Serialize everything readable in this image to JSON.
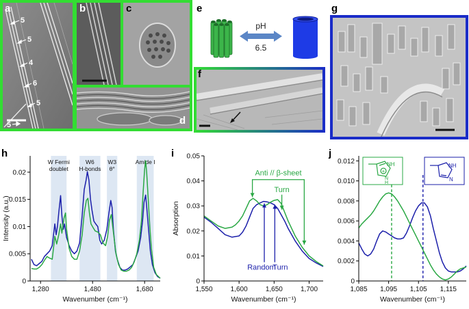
{
  "panel_labels": {
    "a": "a",
    "b": "b",
    "c": "c",
    "d": "d",
    "e": "e",
    "f": "f",
    "g": "g",
    "h": "h",
    "i": "i",
    "j": "j"
  },
  "panel_a": {
    "annotations": [
      "5",
      "5",
      "4",
      "6",
      "5",
      "5"
    ]
  },
  "panel_e": {
    "ph_label": "pH",
    "ph_value": "6.5"
  },
  "colors": {
    "green_frame": "#33dd33",
    "blue_frame": "#1a2cc8",
    "series_blue": "#1b1faa",
    "series_green": "#2aa844",
    "band_shade": "#dde7f3",
    "rod_green": "#3cb54a",
    "tube_blue": "#1e3be6"
  },
  "chart_data": [
    {
      "id": "h",
      "type": "line",
      "xlabel": "Wavenumber (cm⁻¹)",
      "ylabel": "Intensity (a.u.)",
      "xlim": [
        1240,
        1740
      ],
      "ylim": [
        0,
        0.023
      ],
      "xticks": [
        1280,
        1480,
        1680
      ],
      "xtick_labels": [
        "1,280",
        "1,480",
        "1,680"
      ],
      "yticks": [
        0,
        0.005,
        0.01,
        0.015,
        0.02
      ],
      "ytick_labels": [
        "0",
        "0.005",
        "0.01",
        "0.015",
        "0.02"
      ],
      "bands": [
        {
          "x": [
            1320,
            1380
          ],
          "label_lines": [
            "W Fermi",
            "doublet"
          ]
        },
        {
          "x": [
            1430,
            1510
          ],
          "label_lines": [
            "W6",
            "H-bonds"
          ]
        },
        {
          "x": [
            1535,
            1575
          ],
          "label_lines": [
            "W3",
            "θ°"
          ]
        },
        {
          "x": [
            1650,
            1715
          ],
          "label_lines": [
            "Amide I"
          ]
        }
      ],
      "series": [
        {
          "color": "#1b1faa",
          "x": [
            1245,
            1255,
            1265,
            1275,
            1285,
            1295,
            1305,
            1315,
            1325,
            1335,
            1340,
            1345,
            1350,
            1357,
            1362,
            1367,
            1372,
            1380,
            1390,
            1400,
            1410,
            1420,
            1430,
            1440,
            1448,
            1455,
            1460,
            1466,
            1472,
            1478,
            1485,
            1492,
            1500,
            1508,
            1515,
            1525,
            1535,
            1543,
            1550,
            1555,
            1560,
            1568,
            1575,
            1585,
            1595,
            1605,
            1615,
            1625,
            1635,
            1645,
            1655,
            1665,
            1672,
            1678,
            1684,
            1690,
            1696,
            1702,
            1710,
            1720,
            1730,
            1740
          ],
          "y": [
            0.004,
            0.003,
            0.0028,
            0.0032,
            0.0036,
            0.0045,
            0.005,
            0.0055,
            0.0065,
            0.0105,
            0.0085,
            0.01,
            0.0125,
            0.0157,
            0.012,
            0.0095,
            0.0105,
            0.008,
            0.0065,
            0.0055,
            0.005,
            0.0055,
            0.007,
            0.012,
            0.0168,
            0.0185,
            0.0201,
            0.0185,
            0.015,
            0.013,
            0.011,
            0.0105,
            0.01,
            0.0075,
            0.0068,
            0.0075,
            0.0095,
            0.0125,
            0.0148,
            0.0135,
            0.0095,
            0.0055,
            0.004,
            0.0025,
            0.002,
            0.002,
            0.0022,
            0.0026,
            0.003,
            0.0042,
            0.0055,
            0.008,
            0.011,
            0.0145,
            0.0158,
            0.0125,
            0.009,
            0.0055,
            0.003,
            0.0015,
            0.0008,
            0.0005
          ]
        },
        {
          "color": "#2aa844",
          "x": [
            1245,
            1255,
            1265,
            1275,
            1285,
            1295,
            1305,
            1315,
            1325,
            1335,
            1342,
            1350,
            1357,
            1362,
            1370,
            1376,
            1380,
            1390,
            1400,
            1410,
            1420,
            1430,
            1440,
            1448,
            1456,
            1462,
            1468,
            1474,
            1482,
            1490,
            1500,
            1510,
            1520,
            1530,
            1538,
            1545,
            1552,
            1560,
            1570,
            1580,
            1590,
            1600,
            1610,
            1620,
            1630,
            1640,
            1650,
            1660,
            1668,
            1674,
            1680,
            1684,
            1688,
            1694,
            1700,
            1706,
            1715,
            1725,
            1740
          ],
          "y": [
            0.0023,
            0.0022,
            0.0022,
            0.0025,
            0.003,
            0.0038,
            0.0045,
            0.0042,
            0.004,
            0.0082,
            0.0068,
            0.0085,
            0.0105,
            0.0088,
            0.0115,
            0.0125,
            0.0095,
            0.006,
            0.0045,
            0.004,
            0.004,
            0.0055,
            0.0085,
            0.0125,
            0.0148,
            0.0152,
            0.0125,
            0.0105,
            0.0098,
            0.0092,
            0.009,
            0.0085,
            0.007,
            0.0065,
            0.0082,
            0.0112,
            0.0122,
            0.009,
            0.005,
            0.003,
            0.002,
            0.0018,
            0.0018,
            0.002,
            0.0025,
            0.0035,
            0.005,
            0.0075,
            0.011,
            0.016,
            0.0205,
            0.0221,
            0.02,
            0.015,
            0.01,
            0.006,
            0.0025,
            0.0012,
            0.0005
          ]
        }
      ]
    },
    {
      "id": "i",
      "type": "line",
      "xlabel": "Wavenumber (cm⁻¹)",
      "ylabel": "Absorption",
      "xlim": [
        1550,
        1720
      ],
      "ylim": [
        0,
        0.05
      ],
      "xticks": [
        1550,
        1600,
        1650,
        1700
      ],
      "xtick_labels": [
        "1,550",
        "1,600",
        "1,650",
        "1,700"
      ],
      "yticks": [
        0,
        0.01,
        0.02,
        0.03,
        0.04,
        0.05
      ],
      "ytick_labels": [
        "0",
        "0.01",
        "0.02",
        "0.03",
        "0.04",
        "0.05"
      ],
      "annotations": {
        "green_bracket_label": "Anti // β-sheet",
        "green_turn_label": "Turn",
        "blue_random_label": "Random",
        "blue_turn_label": "Turn",
        "green_bracket_x": [
          1619,
          1693
        ],
        "green_turn_x": 1661,
        "blue_random_x": 1636,
        "blue_turn_x": 1651
      },
      "series": [
        {
          "color": "#1b1faa",
          "x": [
            1550,
            1560,
            1570,
            1580,
            1590,
            1600,
            1605,
            1610,
            1615,
            1620,
            1625,
            1630,
            1635,
            1640,
            1645,
            1650,
            1655,
            1660,
            1665,
            1670,
            1680,
            1690,
            1700,
            1710,
            1720
          ],
          "y": [
            0.0255,
            0.0235,
            0.021,
            0.0185,
            0.0175,
            0.018,
            0.0195,
            0.022,
            0.0255,
            0.029,
            0.0305,
            0.0312,
            0.0318,
            0.0316,
            0.0312,
            0.0305,
            0.029,
            0.0265,
            0.024,
            0.021,
            0.016,
            0.012,
            0.009,
            0.0072,
            0.0058
          ]
        },
        {
          "color": "#2aa844",
          "x": [
            1550,
            1560,
            1570,
            1580,
            1590,
            1595,
            1600,
            1605,
            1610,
            1615,
            1620,
            1625,
            1630,
            1635,
            1640,
            1645,
            1650,
            1655,
            1660,
            1665,
            1670,
            1680,
            1690,
            1700,
            1710,
            1720
          ],
          "y": [
            0.026,
            0.024,
            0.022,
            0.021,
            0.0215,
            0.0225,
            0.024,
            0.026,
            0.029,
            0.032,
            0.033,
            0.032,
            0.0305,
            0.03,
            0.0305,
            0.0315,
            0.0322,
            0.0325,
            0.031,
            0.0275,
            0.024,
            0.018,
            0.0135,
            0.01,
            0.0078,
            0.006
          ]
        }
      ]
    },
    {
      "id": "j",
      "type": "line",
      "xlabel": "Wavenumber (cm⁻¹)",
      "xlim": [
        1085,
        1121
      ],
      "ylim": [
        0,
        0.0125
      ],
      "xticks": [
        1085,
        1095,
        1105,
        1115
      ],
      "xtick_labels": [
        "1,085",
        "1,095",
        "1,105",
        "1,115"
      ],
      "yticks": [
        0,
        0.002,
        0.004,
        0.006,
        0.008,
        0.01,
        0.012
      ],
      "ytick_labels": [
        "0",
        "0.002",
        "0.004",
        "0.006",
        "0.008",
        "0.010",
        "0.012"
      ],
      "vlines": [
        {
          "x": 1096,
          "color": "#2aa844"
        },
        {
          "x": 1106.5,
          "color": "#1b1faa"
        }
      ],
      "series": [
        {
          "color": "#1b1faa",
          "x": [
            1085,
            1086,
            1087,
            1088,
            1089,
            1090,
            1091,
            1092,
            1093,
            1094,
            1095,
            1096,
            1097,
            1098,
            1099,
            1100,
            1101,
            1102,
            1103,
            1104,
            1105,
            1106,
            1107,
            1108,
            1109,
            1110,
            1111,
            1112,
            1113,
            1114,
            1115,
            1116,
            1117,
            1118,
            1119,
            1120,
            1121
          ],
          "y": [
            0.0038,
            0.0032,
            0.0027,
            0.0025,
            0.0027,
            0.0032,
            0.004,
            0.0047,
            0.005,
            0.0049,
            0.0047,
            0.0045,
            0.0043,
            0.0042,
            0.0042,
            0.0043,
            0.0048,
            0.0055,
            0.0063,
            0.007,
            0.0075,
            0.0078,
            0.0078,
            0.0074,
            0.0065,
            0.0052,
            0.004,
            0.0028,
            0.0019,
            0.0013,
            0.001,
            0.0009,
            0.0009,
            0.0009,
            0.001,
            0.0012,
            0.0015
          ]
        },
        {
          "color": "#2aa844",
          "x": [
            1085,
            1086,
            1087,
            1088,
            1089,
            1090,
            1091,
            1092,
            1093,
            1094,
            1095,
            1096,
            1097,
            1098,
            1099,
            1100,
            1101,
            1102,
            1103,
            1104,
            1105,
            1106,
            1107,
            1108,
            1109,
            1110,
            1111,
            1112,
            1113,
            1114,
            1115,
            1116,
            1117,
            1118,
            1119,
            1120,
            1121
          ],
          "y": [
            0.0053,
            0.0057,
            0.006,
            0.0063,
            0.0066,
            0.007,
            0.0075,
            0.008,
            0.0084,
            0.0087,
            0.0088,
            0.0087,
            0.0084,
            0.008,
            0.0075,
            0.007,
            0.0064,
            0.0058,
            0.0052,
            0.0046,
            0.004,
            0.0034,
            0.0028,
            0.0022,
            0.0016,
            0.0011,
            0.0007,
            0.0004,
            0.0002,
            0.0001,
            0.0002,
            0.0004,
            0.0007,
            0.001,
            0.0012,
            0.0013,
            0.0014
          ]
        }
      ]
    }
  ]
}
